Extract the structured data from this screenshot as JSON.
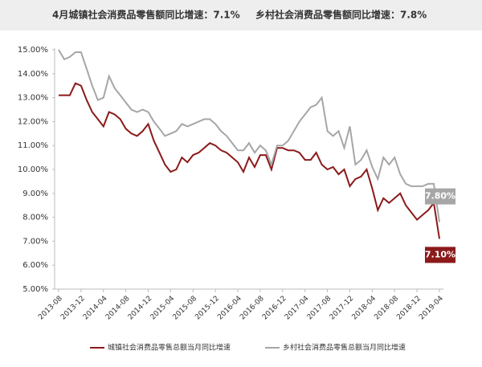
{
  "chart_data": {
    "type": "line",
    "title": "4月城镇社会消费品零售额同比增速：7.1%",
    "subtitle": "乡村社会消费品零售额同比增速：7.8%",
    "categories": [
      "2013-08",
      null,
      null,
      null,
      "2013-12",
      null,
      null,
      null,
      "2014-04",
      null,
      null,
      null,
      "2014-08",
      null,
      null,
      null,
      "2014-12",
      null,
      null,
      null,
      "2015-04",
      null,
      null,
      null,
      "2015-08",
      null,
      null,
      null,
      "2015-12",
      null,
      null,
      null,
      "2016-04",
      null,
      null,
      null,
      "2016-08",
      null,
      null,
      null,
      "2016-12",
      null,
      null,
      null,
      "2017-04",
      null,
      null,
      null,
      "2017-08",
      null,
      null,
      null,
      "2017-12",
      null,
      null,
      null,
      "2018-04",
      null,
      null,
      null,
      "2018-08",
      null,
      null,
      null,
      "2018-12",
      null,
      null,
      null,
      "2019-04"
    ],
    "series": [
      {
        "name": "城镇社会消费品零售总额当月同比增速",
        "color": "#8b1a1a",
        "values": [
          13.1,
          13.1,
          13.1,
          13.6,
          13.5,
          12.9,
          12.4,
          12.1,
          11.8,
          12.4,
          12.3,
          12.1,
          11.7,
          11.5,
          11.4,
          11.6,
          11.9,
          11.2,
          10.7,
          10.2,
          9.9,
          10.0,
          10.5,
          10.3,
          10.6,
          10.7,
          10.9,
          11.1,
          11.0,
          10.8,
          10.7,
          10.5,
          10.3,
          9.9,
          10.5,
          10.1,
          10.6,
          10.6,
          10.0,
          10.9,
          10.9,
          10.8,
          10.8,
          10.7,
          10.4,
          10.4,
          10.7,
          10.2,
          10.0,
          10.1,
          9.8,
          10.0,
          9.3,
          9.6,
          9.7,
          10.0,
          9.2,
          8.3,
          8.8,
          8.6,
          8.8,
          9.0,
          8.5,
          8.2,
          7.9,
          8.1,
          8.3,
          8.6,
          7.1
        ],
        "value_labels": [
          null,
          null,
          null,
          null,
          null,
          null,
          null,
          null,
          null,
          null,
          null,
          null,
          null,
          null,
          null,
          null,
          null,
          null,
          null,
          null,
          null,
          null,
          null,
          null,
          null,
          null,
          null,
          null,
          null,
          null,
          null,
          null,
          null,
          null,
          null,
          null,
          null,
          null,
          null,
          null,
          null,
          null,
          null,
          null,
          null,
          null,
          null,
          null,
          null,
          null,
          null,
          null,
          null,
          null,
          null,
          null,
          null,
          null,
          null,
          null,
          null,
          null,
          null,
          null,
          null,
          null,
          null,
          null,
          "7.10%"
        ]
      },
      {
        "name": "乡村社会消费品零售总额当月同比增速",
        "color": "#a6a6a6",
        "values": [
          15.0,
          14.6,
          14.7,
          14.9,
          14.9,
          14.2,
          13.5,
          12.9,
          13.0,
          13.9,
          13.4,
          13.1,
          12.8,
          12.5,
          12.4,
          12.5,
          12.4,
          12.0,
          11.7,
          11.4,
          11.5,
          11.6,
          11.9,
          11.8,
          11.9,
          12.0,
          12.1,
          12.1,
          11.9,
          11.6,
          11.4,
          11.1,
          10.8,
          10.8,
          11.1,
          10.7,
          11.0,
          10.8,
          10.2,
          11.0,
          11.0,
          11.2,
          11.6,
          12.0,
          12.3,
          12.6,
          12.7,
          13.0,
          11.6,
          11.4,
          11.6,
          10.9,
          11.8,
          10.2,
          10.4,
          10.8,
          10.1,
          9.6,
          10.5,
          10.2,
          10.5,
          9.8,
          9.4,
          9.3,
          9.3,
          9.3,
          9.4,
          9.4,
          7.8
        ],
        "value_labels": [
          null,
          null,
          null,
          null,
          null,
          null,
          null,
          null,
          null,
          null,
          null,
          null,
          null,
          null,
          null,
          null,
          null,
          null,
          null,
          null,
          null,
          null,
          null,
          null,
          null,
          null,
          null,
          null,
          null,
          null,
          null,
          null,
          null,
          null,
          null,
          null,
          null,
          null,
          null,
          null,
          null,
          null,
          null,
          null,
          null,
          null,
          null,
          null,
          null,
          null,
          null,
          null,
          null,
          null,
          null,
          null,
          null,
          null,
          null,
          null,
          null,
          null,
          null,
          null,
          null,
          null,
          null,
          null,
          "7.80%"
        ]
      }
    ],
    "ylim": [
      5,
      15
    ],
    "yticks": [
      {
        "value": 5,
        "label": "5.00%"
      },
      {
        "value": 6,
        "label": "6.00%"
      },
      {
        "value": 7,
        "label": "7.00%"
      },
      {
        "value": 8,
        "label": "8.00%"
      },
      {
        "value": 9,
        "label": "9.00%"
      },
      {
        "value": 10,
        "label": "10.00%"
      },
      {
        "value": 11,
        "label": "11.00%"
      },
      {
        "value": 12,
        "label": "12.00%"
      },
      {
        "value": 13,
        "label": "13.00%"
      },
      {
        "value": 14,
        "label": "14.00%"
      },
      {
        "value": 15,
        "label": "15.00%"
      }
    ],
    "grid": false
  }
}
